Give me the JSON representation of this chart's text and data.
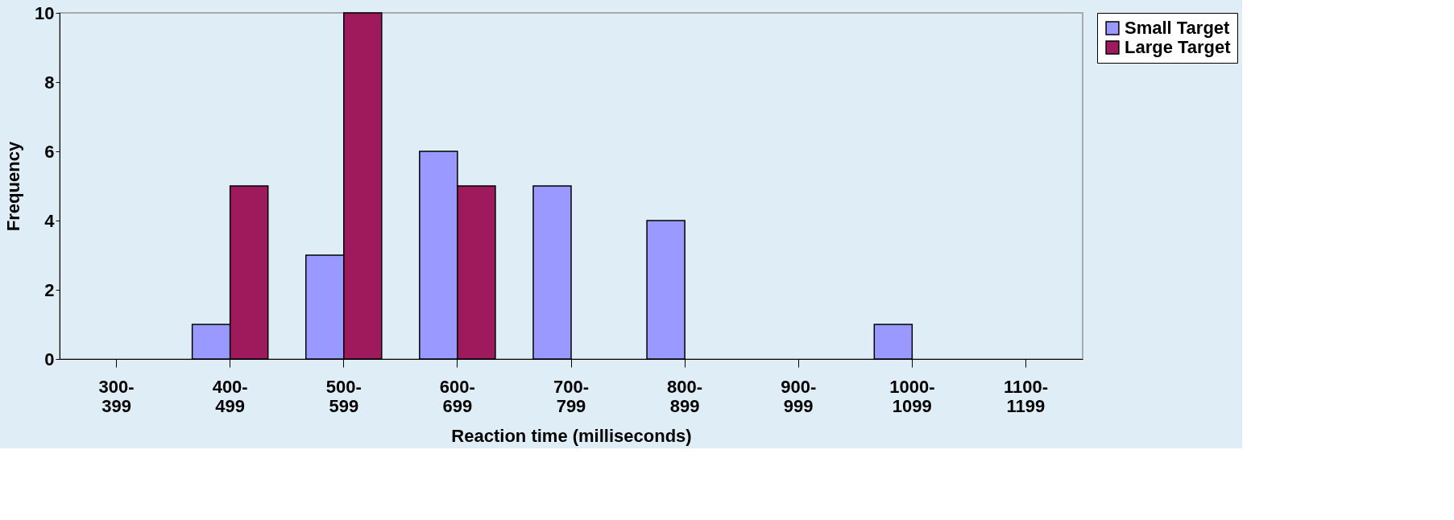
{
  "chart_data": {
    "type": "bar",
    "xlabel": "Reaction time (milliseconds)",
    "ylabel": "Frequency",
    "categories": [
      "300-399",
      "400-499",
      "500-599",
      "600-699",
      "700-799",
      "800-899",
      "900-999",
      "1000-1099",
      "1100-1199"
    ],
    "series": [
      {
        "name": "Small Target",
        "color": "#9999ff",
        "values": [
          0,
          1,
          3,
          6,
          5,
          4,
          0,
          1,
          0
        ]
      },
      {
        "name": "Large Target",
        "color": "#9e1a5c",
        "values": [
          0,
          5,
          10,
          5,
          0,
          0,
          0,
          0,
          0
        ]
      }
    ],
    "ylim": [
      0,
      10
    ],
    "yticks": [
      0,
      2,
      4,
      6,
      8,
      10
    ],
    "grid": false,
    "legend": "right"
  }
}
